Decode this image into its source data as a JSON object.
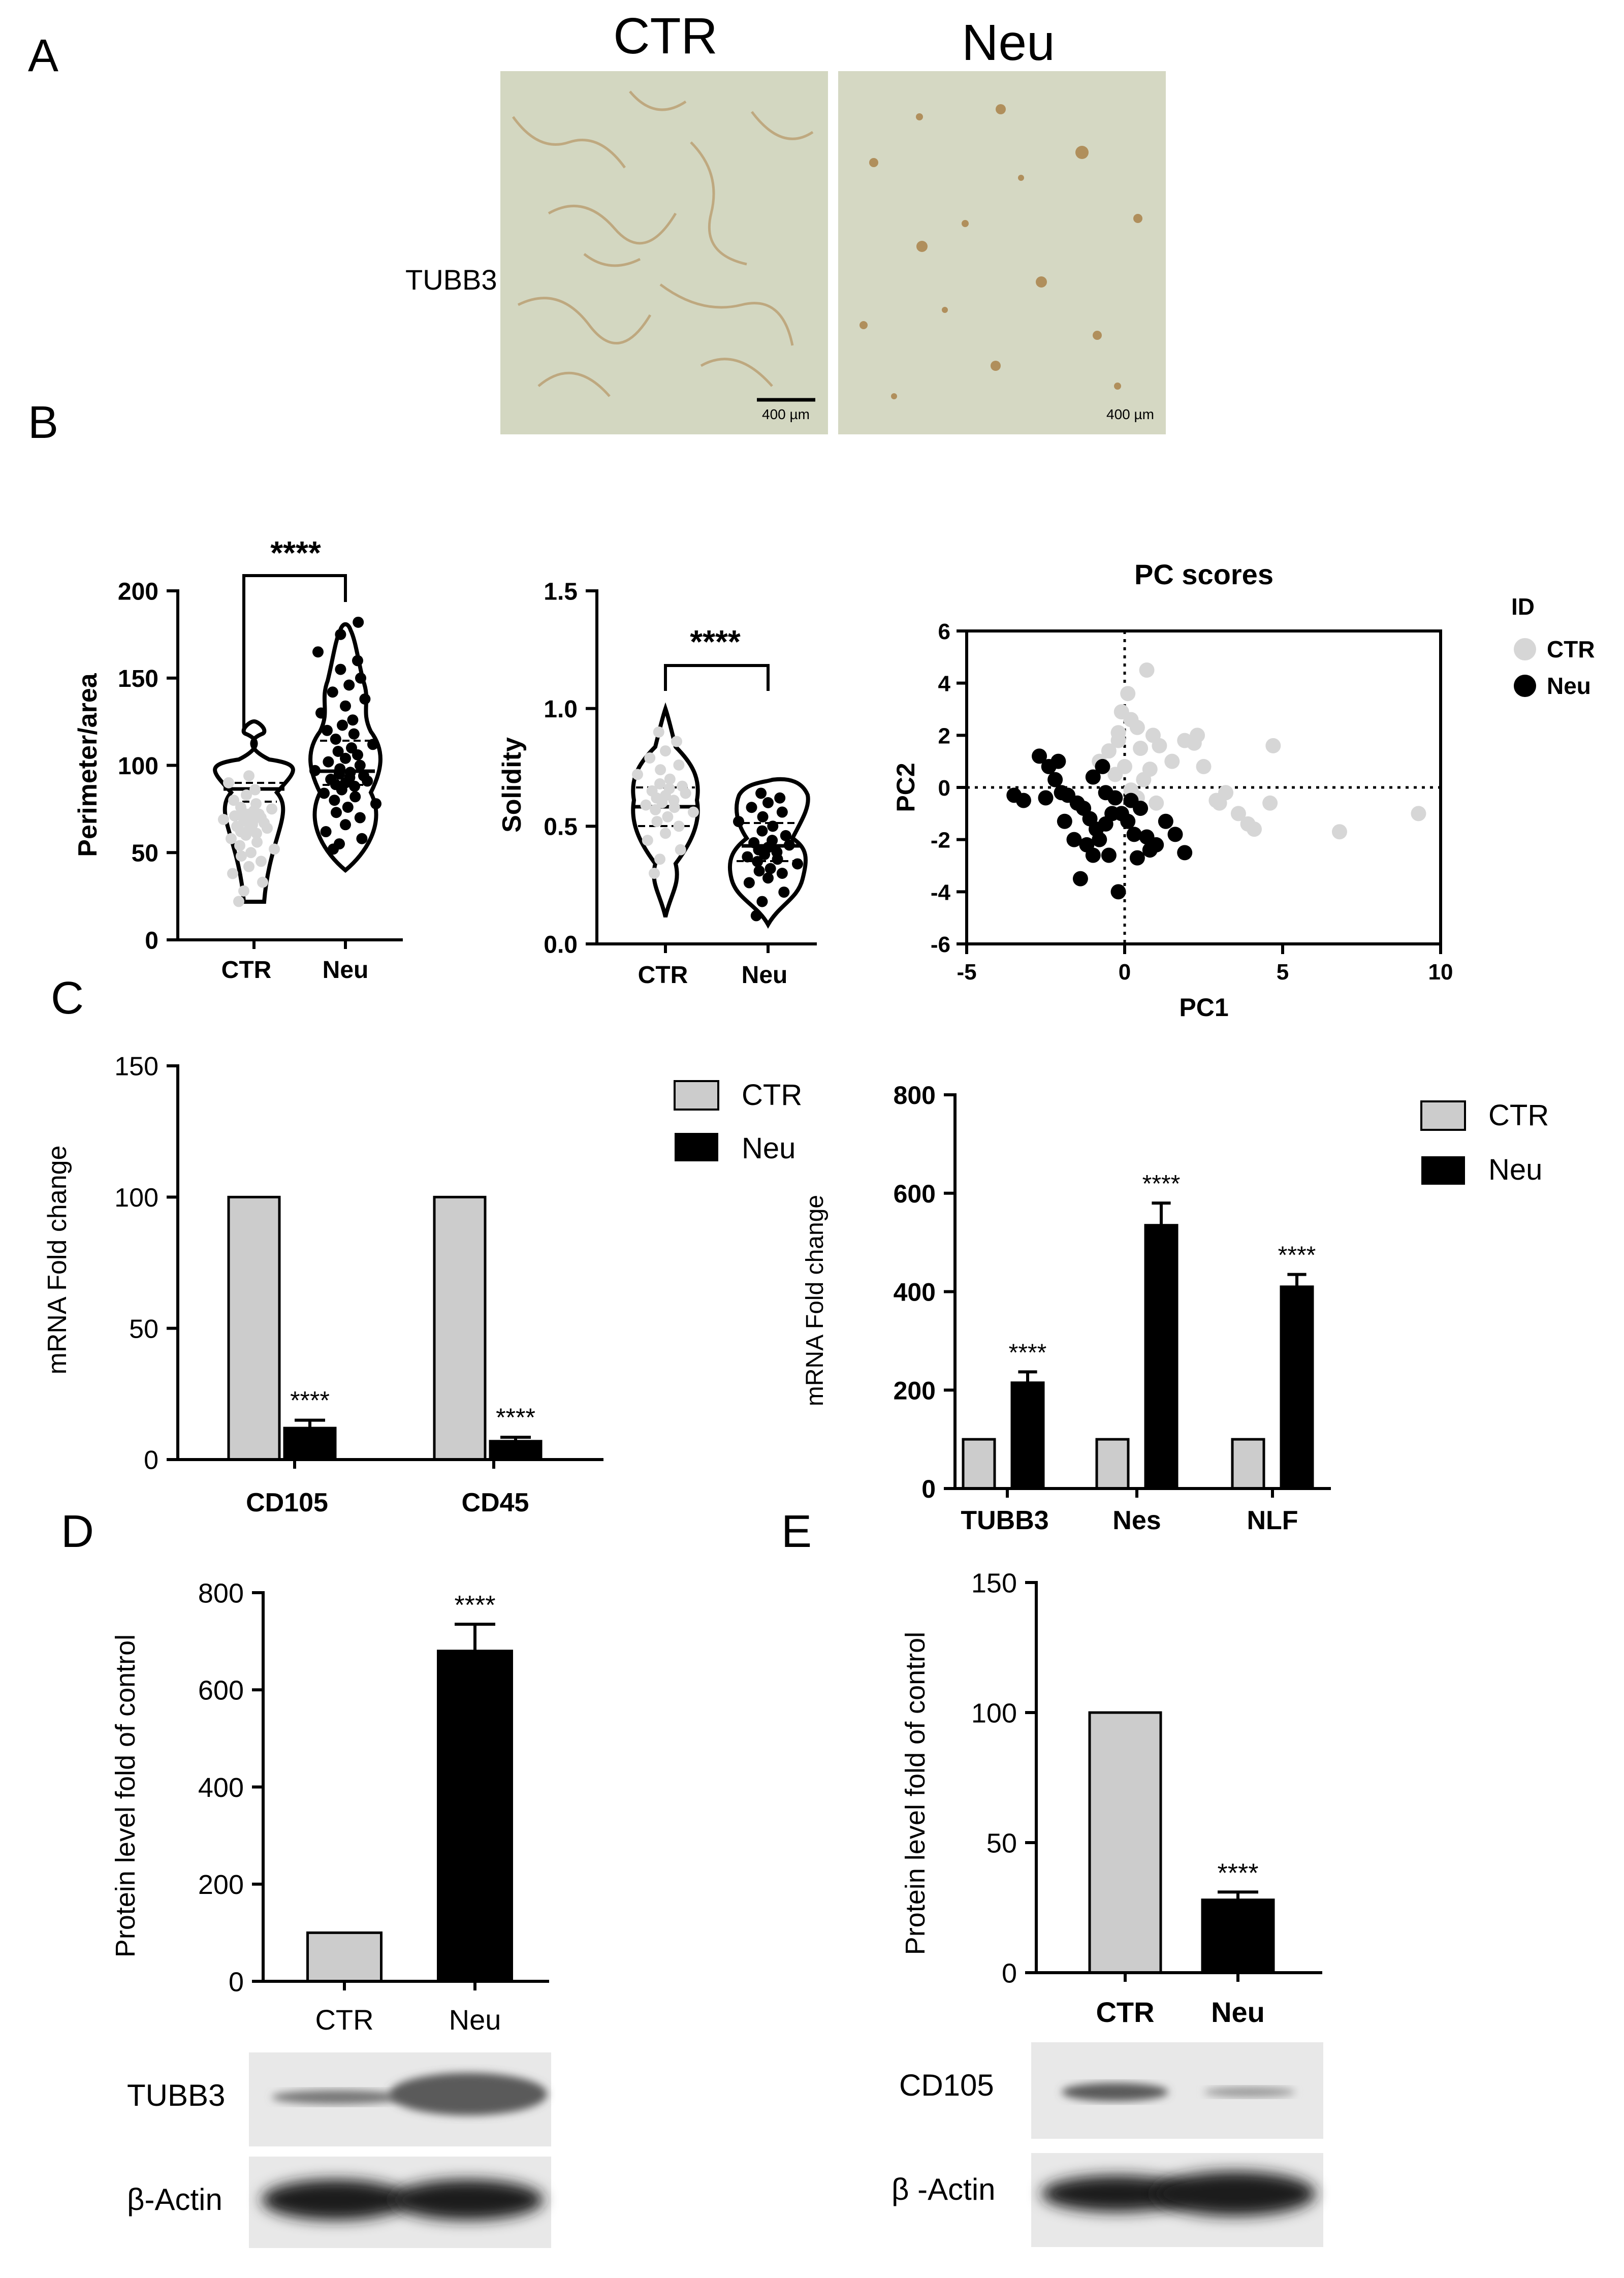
{
  "panel_letters": [
    "A",
    "B",
    "C",
    "D",
    "E"
  ],
  "colors": {
    "ctr_bar": "#cccccc",
    "ctr_point": "#d6d6d6",
    "neu": "#000000",
    "micro_bg": "#d3d7c1",
    "micro_stain": "#b08f5c"
  },
  "panel_a": {
    "columns": [
      "CTR",
      "Neu"
    ],
    "row_label": "TUBB3",
    "scale_bar": [
      "400 µm",
      "400 µm"
    ]
  },
  "chart_data": [
    {
      "id": "B1",
      "type": "violin",
      "title": "",
      "xlabel": "",
      "ylabel": "Perimeter/area",
      "categories": [
        "CTR",
        "Neu"
      ],
      "ylim": [
        0,
        200
      ],
      "yticks": [
        "0",
        "50",
        "100",
        "150",
        "200"
      ],
      "median": [
        68,
        95
      ],
      "quartiles": [
        [
          58,
          73
        ],
        [
          80,
          118
        ]
      ],
      "range": [
        [
          22,
          95
        ],
        [
          52,
          182
        ]
      ],
      "points": [
        [
          22,
          28,
          33,
          38,
          42,
          45,
          48,
          50,
          52,
          54,
          56,
          58,
          60,
          61,
          62,
          63,
          64,
          65,
          66,
          67,
          68,
          68,
          69,
          70,
          70,
          71,
          72,
          72,
          73,
          74,
          75,
          76,
          78,
          80,
          83,
          86,
          90,
          94
        ],
        [
          52,
          55,
          58,
          62,
          66,
          70,
          73,
          76,
          78,
          80,
          82,
          84,
          86,
          88,
          89,
          90,
          91,
          92,
          93,
          94,
          95,
          96,
          97,
          98,
          100,
          102,
          104,
          106,
          108,
          110,
          112,
          115,
          118,
          120,
          123,
          126,
          130,
          134,
          138,
          142,
          146,
          150,
          155,
          160,
          165,
          175,
          182
        ]
      ],
      "significance": "****"
    },
    {
      "id": "B2",
      "type": "violin",
      "title": "",
      "xlabel": "",
      "ylabel": "Solidity",
      "categories": [
        "CTR",
        "Neu"
      ],
      "ylim": [
        0,
        1.5
      ],
      "yticks": [
        "0.0",
        "0.5",
        "1.0",
        "1.5"
      ],
      "median": [
        0.6,
        0.4
      ],
      "quartiles": [
        [
          0.5,
          0.7
        ],
        [
          0.32,
          0.52
        ]
      ],
      "range": [
        [
          0.14,
          1.0
        ],
        [
          0.09,
          0.85
        ]
      ],
      "points": [
        [
          0.3,
          0.36,
          0.4,
          0.44,
          0.47,
          0.5,
          0.52,
          0.54,
          0.56,
          0.57,
          0.58,
          0.59,
          0.6,
          0.61,
          0.62,
          0.63,
          0.64,
          0.65,
          0.66,
          0.67,
          0.68,
          0.7,
          0.72,
          0.74,
          0.76,
          0.79,
          0.82,
          0.86,
          0.9
        ],
        [
          0.12,
          0.18,
          0.22,
          0.26,
          0.28,
          0.3,
          0.31,
          0.32,
          0.34,
          0.35,
          0.36,
          0.37,
          0.38,
          0.39,
          0.4,
          0.41,
          0.42,
          0.43,
          0.44,
          0.46,
          0.48,
          0.5,
          0.52,
          0.54,
          0.56,
          0.58,
          0.6,
          0.62,
          0.64
        ]
      ],
      "significance": "****"
    },
    {
      "id": "B3",
      "type": "scatter",
      "title": "PC scores",
      "xlabel": "PC1",
      "ylabel": "PC2",
      "xlim": [
        -5,
        10
      ],
      "ylim": [
        -6,
        6
      ],
      "xticks": [
        "-5",
        "0",
        "5",
        "10"
      ],
      "yticks": [
        "-6",
        "-4",
        "-2",
        "0",
        "2",
        "4",
        "6"
      ],
      "legend_title": "ID",
      "legend_position": "right",
      "series": [
        {
          "name": "CTR",
          "points": [
            [
              -0.5,
              1.4
            ],
            [
              -0.2,
              1.8
            ],
            [
              -0.1,
              2.9
            ],
            [
              0.2,
              2.6
            ],
            [
              0.4,
              2.3
            ],
            [
              -0.3,
              0.5
            ],
            [
              0.1,
              3.6
            ],
            [
              0.7,
              4.5
            ],
            [
              0.9,
              2.0
            ],
            [
              0.5,
              1.5
            ],
            [
              1.1,
              1.6
            ],
            [
              1.9,
              1.8
            ],
            [
              2.2,
              1.7
            ],
            [
              1.5,
              1.0
            ],
            [
              0.8,
              0.7
            ],
            [
              2.5,
              0.8
            ],
            [
              0.6,
              0.3
            ],
            [
              0.2,
              -0.1
            ],
            [
              1.0,
              -0.6
            ],
            [
              2.9,
              -0.5
            ],
            [
              3.2,
              -0.2
            ],
            [
              3.6,
              -1.0
            ],
            [
              3.9,
              -1.4
            ],
            [
              4.1,
              -1.6
            ],
            [
              4.6,
              -0.6
            ],
            [
              4.7,
              1.6
            ],
            [
              6.8,
              -1.7
            ],
            [
              9.3,
              -1.0
            ],
            [
              -0.8,
              1.0
            ],
            [
              0.0,
              0.8
            ],
            [
              0.4,
              -0.4
            ],
            [
              -0.2,
              2.1
            ],
            [
              2.3,
              2.0
            ],
            [
              3.0,
              -0.6
            ]
          ]
        },
        {
          "name": "Neu",
          "points": [
            [
              -3.5,
              -0.3
            ],
            [
              -3.2,
              -0.5
            ],
            [
              -2.7,
              1.2
            ],
            [
              -2.4,
              0.8
            ],
            [
              -2.1,
              1.0
            ],
            [
              -2.0,
              -0.2
            ],
            [
              -1.8,
              -0.3
            ],
            [
              -1.5,
              -0.6
            ],
            [
              -1.3,
              -0.8
            ],
            [
              -1.1,
              -1.2
            ],
            [
              -0.9,
              -1.6
            ],
            [
              -0.8,
              -2.0
            ],
            [
              -0.6,
              -1.4
            ],
            [
              -0.5,
              -2.6
            ],
            [
              -0.4,
              -1.0
            ],
            [
              -0.3,
              -0.4
            ],
            [
              -1.0,
              0.4
            ],
            [
              -0.7,
              0.8
            ],
            [
              -1.6,
              -2.0
            ],
            [
              -1.4,
              -3.5
            ],
            [
              -1.2,
              -2.2
            ],
            [
              -0.2,
              -4.0
            ],
            [
              0.1,
              -1.3
            ],
            [
              0.3,
              -1.8
            ],
            [
              0.5,
              -0.8
            ],
            [
              0.7,
              -1.9
            ],
            [
              1.0,
              -2.2
            ],
            [
              1.3,
              -1.3
            ],
            [
              1.6,
              -1.8
            ],
            [
              1.9,
              -2.5
            ],
            [
              0.2,
              -0.5
            ],
            [
              -0.1,
              -1.0
            ],
            [
              -2.5,
              -0.4
            ],
            [
              -2.2,
              0.3
            ],
            [
              -0.6,
              -0.2
            ],
            [
              0.8,
              -2.4
            ],
            [
              -1.9,
              -1.3
            ],
            [
              -1.0,
              -2.6
            ],
            [
              0.4,
              -2.7
            ]
          ]
        }
      ]
    },
    {
      "id": "C1",
      "type": "bar",
      "title": "",
      "xlabel": "",
      "ylabel": "mRNA Fold change",
      "categories": [
        "CD105",
        "CD45"
      ],
      "ylim": [
        0,
        150
      ],
      "yticks": [
        "0",
        "50",
        "100",
        "150"
      ],
      "legend_position": "top-right",
      "series": [
        {
          "name": "CTR",
          "values": [
            100,
            100
          ]
        },
        {
          "name": "Neu",
          "values": [
            12,
            7
          ],
          "errors": [
            3,
            1.5
          ]
        }
      ],
      "significance": [
        "****",
        "****"
      ]
    },
    {
      "id": "C2",
      "type": "bar",
      "title": "",
      "xlabel": "",
      "ylabel": "mRNA Fold change",
      "categories": [
        "TUBB3",
        "Nes",
        "NLF"
      ],
      "ylim": [
        0,
        800
      ],
      "yticks": [
        "0",
        "200",
        "400",
        "600",
        "800"
      ],
      "legend_position": "top-right",
      "series": [
        {
          "name": "CTR",
          "values": [
            100,
            100,
            100
          ]
        },
        {
          "name": "Neu",
          "values": [
            215,
            535,
            410
          ],
          "errors": [
            22,
            45,
            25
          ]
        }
      ],
      "significance": [
        "****",
        "****",
        "****"
      ]
    },
    {
      "id": "D",
      "type": "bar",
      "title": "",
      "xlabel": "",
      "ylabel": "Protein level fold of control",
      "categories": [
        "CTR",
        "Neu"
      ],
      "ylim": [
        0,
        800
      ],
      "yticks": [
        "0",
        "200",
        "400",
        "600",
        "800"
      ],
      "values": [
        100,
        680
      ],
      "errors": [
        0,
        55
      ],
      "significance": [
        "",
        "****"
      ],
      "blot_labels": [
        "TUBB3",
        "β-Actin"
      ]
    },
    {
      "id": "E",
      "type": "bar",
      "title": "",
      "xlabel": "",
      "ylabel": "Protein level fold of control",
      "categories": [
        "CTR",
        "Neu"
      ],
      "ylim": [
        0,
        150
      ],
      "yticks": [
        "0",
        "50",
        "100",
        "150"
      ],
      "values": [
        100,
        28
      ],
      "errors": [
        0,
        3
      ],
      "significance": [
        "",
        "****"
      ],
      "blot_labels": [
        "CD105",
        "β -Actin"
      ]
    }
  ]
}
